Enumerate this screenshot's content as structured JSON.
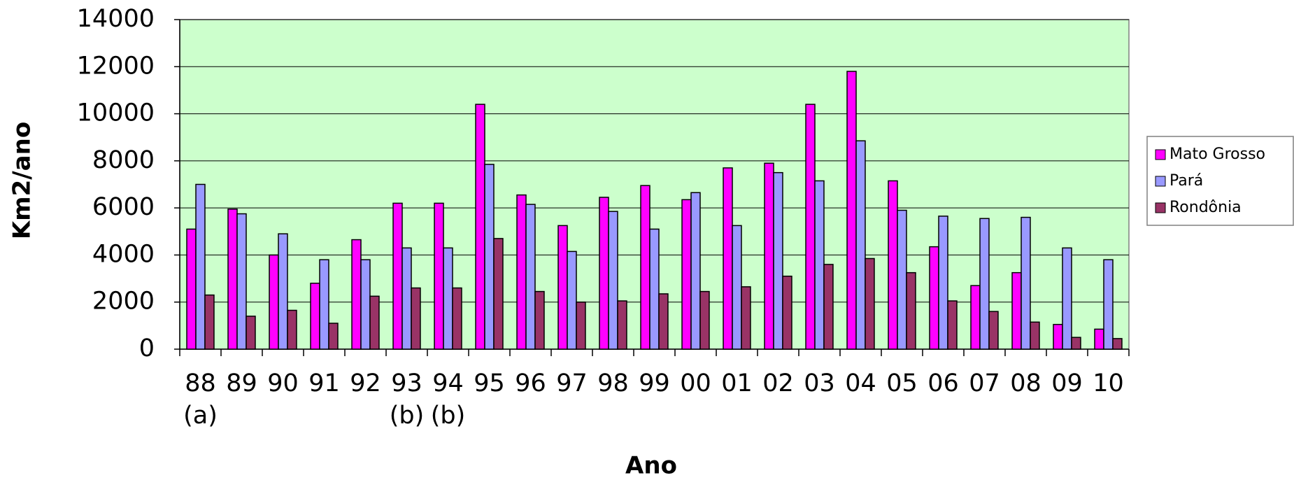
{
  "chart_data": {
    "type": "bar",
    "x_label": "Ano",
    "y_label": "Km2/ano",
    "categories": [
      "88",
      "89",
      "90",
      "91",
      "92",
      "93",
      "94",
      "95",
      "96",
      "97",
      "98",
      "99",
      "00",
      "01",
      "02",
      "03",
      "04",
      "05",
      "06",
      "07",
      "08",
      "09",
      "10"
    ],
    "category_notes": [
      "(a)",
      null,
      null,
      null,
      null,
      "(b)",
      "(b)",
      null,
      null,
      null,
      null,
      null,
      null,
      null,
      null,
      null,
      null,
      null,
      null,
      null,
      null,
      null,
      null
    ],
    "series": [
      {
        "name": "Mato Grosso",
        "color": "#ff00ff",
        "values": [
          5100,
          5950,
          4000,
          2800,
          4650,
          6200,
          6200,
          10400,
          6550,
          5250,
          6450,
          6950,
          6350,
          7700,
          7900,
          10400,
          11800,
          7150,
          4350,
          2700,
          3250,
          1050,
          850
        ]
      },
      {
        "name": "Pará",
        "color": "#9999ff",
        "values": [
          7000,
          5750,
          4900,
          3800,
          3800,
          4300,
          4300,
          7850,
          6150,
          4150,
          5850,
          5100,
          6650,
          5250,
          7500,
          7150,
          8850,
          5900,
          5650,
          5550,
          5600,
          4300,
          3800
        ]
      },
      {
        "name": "Rondônia",
        "color": "#993366",
        "values": [
          2300,
          1400,
          1650,
          1100,
          2250,
          2600,
          2600,
          4700,
          2450,
          2000,
          2050,
          2350,
          2450,
          2650,
          3100,
          3600,
          3850,
          3250,
          2050,
          1600,
          1150,
          500,
          450
        ]
      }
    ],
    "ylim": [
      0,
      14000
    ],
    "yticks": [
      0,
      2000,
      4000,
      6000,
      8000,
      10000,
      12000,
      14000
    ],
    "grid": true,
    "plot_background": "#ccffcc",
    "legend": "right"
  }
}
